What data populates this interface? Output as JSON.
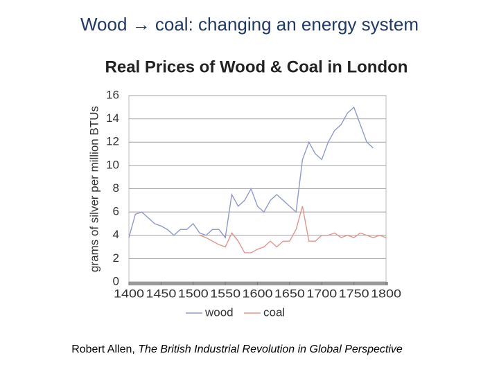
{
  "title": "Wood → coal: changing an energy system",
  "chart_data": {
    "type": "line",
    "title": "Real Prices of Wood  & Coal in London",
    "ylabel": "grams of silver per million BTUs",
    "x": [
      1400,
      1410,
      1420,
      1430,
      1440,
      1450,
      1460,
      1470,
      1480,
      1490,
      1500,
      1510,
      1520,
      1530,
      1540,
      1550,
      1560,
      1570,
      1580,
      1590,
      1600,
      1610,
      1620,
      1630,
      1640,
      1650,
      1660,
      1670,
      1680,
      1690,
      1700,
      1710,
      1720,
      1730,
      1740,
      1750,
      1760,
      1770,
      1780,
      1790,
      1800
    ],
    "series": [
      {
        "name": "wood",
        "color": "#8f98d0",
        "values": [
          3.8,
          5.8,
          6.0,
          5.5,
          5.0,
          4.8,
          4.5,
          4.0,
          4.5,
          4.5,
          5.0,
          4.2,
          4.0,
          4.5,
          4.5,
          3.8,
          7.5,
          6.5,
          7.0,
          8.0,
          6.5,
          6.0,
          7.0,
          7.5,
          7.0,
          6.5,
          6.0,
          10.5,
          12.0,
          11.0,
          10.5,
          12.0,
          13.0,
          13.5,
          14.5,
          15.0,
          13.5,
          12.0,
          11.5,
          null,
          null
        ]
      },
      {
        "name": "coal",
        "color": "#e4948f",
        "values": [
          null,
          null,
          null,
          null,
          null,
          null,
          null,
          null,
          null,
          null,
          null,
          4.0,
          3.8,
          3.5,
          3.2,
          3.0,
          4.2,
          3.5,
          2.5,
          2.5,
          2.8,
          3.0,
          3.5,
          3.0,
          3.5,
          3.5,
          4.5,
          6.5,
          3.5,
          3.5,
          4.0,
          4.0,
          4.2,
          3.8,
          4.0,
          3.8,
          4.2,
          4.0,
          3.8,
          4.0,
          3.8
        ]
      }
    ],
    "xlim": [
      1400,
      1800
    ],
    "xticks": [
      1400,
      1450,
      1500,
      1550,
      1600,
      1650,
      1700,
      1750,
      1800
    ],
    "ylim": [
      0,
      16
    ],
    "yticks": [
      0,
      2,
      4,
      6,
      8,
      10,
      12,
      14,
      16
    ],
    "grid": true,
    "legend": "bottom"
  },
  "citation": {
    "author": "Robert Allen,",
    "work": "The British Industrial Revolution in Global Perspective"
  }
}
